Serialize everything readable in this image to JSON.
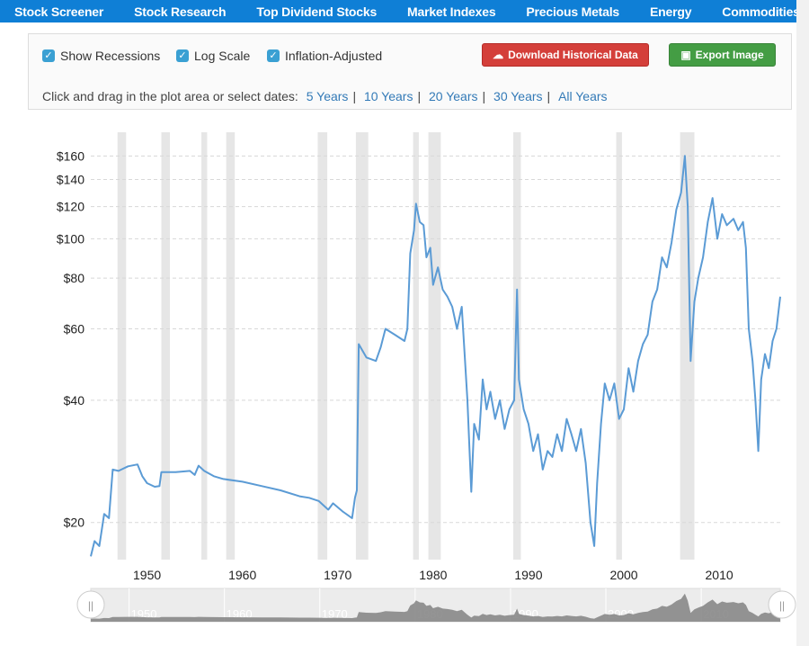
{
  "nav": [
    "Stock Screener",
    "Stock Research",
    "Top Dividend Stocks",
    "Market Indexes",
    "Precious Metals",
    "Energy",
    "Commodities"
  ],
  "controls": {
    "checkboxes": [
      "Show Recessions",
      "Log Scale",
      "Inflation-Adjusted"
    ],
    "download": "Download Historical Data",
    "export": "Export Image",
    "dates_label": "Click and drag in the plot area or select dates:",
    "ranges": [
      "5 Years",
      "10 Years",
      "20 Years",
      "30 Years",
      "All Years"
    ]
  },
  "colors": {
    "line": "#5b9bd5",
    "recession": "#e6e6e6",
    "navigator": "#888888"
  },
  "chart_data": {
    "type": "line",
    "title": "",
    "xlabel": "",
    "ylabel": "",
    "yscale": "log",
    "ylim": [
      16.2,
      183
    ],
    "xlim": [
      1944.1,
      2016.4
    ],
    "ytick_labels": [
      "$20",
      "$40",
      "$60",
      "$80",
      "$100",
      "$120",
      "$140",
      "$160"
    ],
    "yticks": [
      20,
      40,
      60,
      80,
      100,
      120,
      140,
      160
    ],
    "xtick_labels": [
      "1950",
      "1960",
      "1970",
      "1980",
      "1990",
      "2000",
      "2010"
    ],
    "xticks": [
      1950,
      1960,
      1970,
      1980,
      1990,
      2000,
      2010
    ],
    "recessions": [
      [
        1946.9,
        1947.8
      ],
      [
        1951.5,
        1952.4
      ],
      [
        1955.7,
        1956.3
      ],
      [
        1958.3,
        1959.2
      ],
      [
        1967.9,
        1968.9
      ],
      [
        1971.9,
        1973.2
      ],
      [
        1977.9,
        1978.5
      ],
      [
        1979.5,
        1980.8
      ],
      [
        1988.4,
        1989.2
      ],
      [
        1999.2,
        1999.8
      ],
      [
        2005.9,
        2007.4
      ]
    ],
    "series": [
      {
        "name": "Price",
        "points": [
          [
            1944.1,
            16.5
          ],
          [
            1944.5,
            18
          ],
          [
            1945,
            17.5
          ],
          [
            1945.5,
            21
          ],
          [
            1946,
            20.5
          ],
          [
            1946.4,
            27
          ],
          [
            1947,
            26.8
          ],
          [
            1948,
            27.5
          ],
          [
            1949,
            27.8
          ],
          [
            1949.5,
            26
          ],
          [
            1950,
            25
          ],
          [
            1950.8,
            24.5
          ],
          [
            1951.3,
            24.6
          ],
          [
            1951.5,
            26.6
          ],
          [
            1953,
            26.6
          ],
          [
            1954.5,
            26.8
          ],
          [
            1955,
            26.2
          ],
          [
            1955.4,
            27.6
          ],
          [
            1956,
            26.8
          ],
          [
            1957,
            26
          ],
          [
            1958,
            25.6
          ],
          [
            1960,
            25.2
          ],
          [
            1962,
            24.6
          ],
          [
            1964,
            24
          ],
          [
            1966,
            23.2
          ],
          [
            1967,
            23
          ],
          [
            1968,
            22.6
          ],
          [
            1969,
            21.5
          ],
          [
            1969.5,
            22.3
          ],
          [
            1970.5,
            21.3
          ],
          [
            1971.5,
            20.5
          ],
          [
            1971.8,
            23
          ],
          [
            1972,
            24
          ],
          [
            1972.2,
            55
          ],
          [
            1973,
            51
          ],
          [
            1974,
            50
          ],
          [
            1974.5,
            54
          ],
          [
            1975,
            60
          ],
          [
            1976,
            58
          ],
          [
            1977,
            56
          ],
          [
            1977.3,
            60
          ],
          [
            1977.6,
            92
          ],
          [
            1978,
            105
          ],
          [
            1978.2,
            122
          ],
          [
            1978.6,
            110
          ],
          [
            1979,
            108
          ],
          [
            1979.3,
            90
          ],
          [
            1979.7,
            95
          ],
          [
            1980,
            77
          ],
          [
            1980.5,
            85
          ],
          [
            1981,
            75
          ],
          [
            1981.5,
            72
          ],
          [
            1982,
            68
          ],
          [
            1982.5,
            60
          ],
          [
            1983,
            68
          ],
          [
            1983.6,
            40
          ],
          [
            1984,
            23.8
          ],
          [
            1984.3,
            35
          ],
          [
            1984.8,
            32
          ],
          [
            1985.2,
            45
          ],
          [
            1985.6,
            38
          ],
          [
            1986,
            42
          ],
          [
            1986.5,
            36
          ],
          [
            1987,
            40
          ],
          [
            1987.5,
            34
          ],
          [
            1988,
            38
          ],
          [
            1988.5,
            40
          ],
          [
            1988.8,
            75
          ],
          [
            1989,
            45
          ],
          [
            1989.5,
            38
          ],
          [
            1990,
            35
          ],
          [
            1990.5,
            30
          ],
          [
            1991,
            33
          ],
          [
            1991.5,
            27
          ],
          [
            1992,
            30
          ],
          [
            1992.5,
            29
          ],
          [
            1993,
            33
          ],
          [
            1993.5,
            30
          ],
          [
            1994,
            36
          ],
          [
            1994.5,
            33
          ],
          [
            1995,
            30
          ],
          [
            1995.5,
            34
          ],
          [
            1996,
            28
          ],
          [
            1996.5,
            20
          ],
          [
            1996.9,
            17.5
          ],
          [
            1997.2,
            25
          ],
          [
            1997.6,
            35
          ],
          [
            1998,
            44
          ],
          [
            1998.5,
            40
          ],
          [
            1999,
            44
          ],
          [
            1999.5,
            36
          ],
          [
            2000,
            38
          ],
          [
            2000.5,
            48
          ],
          [
            2001,
            42
          ],
          [
            2001.5,
            50
          ],
          [
            2002,
            55
          ],
          [
            2002.5,
            58
          ],
          [
            2003,
            70
          ],
          [
            2003.5,
            75
          ],
          [
            2004,
            90
          ],
          [
            2004.5,
            85
          ],
          [
            2005,
            98
          ],
          [
            2005.5,
            118
          ],
          [
            2006,
            130
          ],
          [
            2006.4,
            160
          ],
          [
            2006.7,
            120
          ],
          [
            2007,
            50
          ],
          [
            2007.4,
            70
          ],
          [
            2007.8,
            80
          ],
          [
            2008.3,
            90
          ],
          [
            2008.8,
            110
          ],
          [
            2009.3,
            126
          ],
          [
            2009.8,
            100
          ],
          [
            2010.3,
            115
          ],
          [
            2010.8,
            108
          ],
          [
            2011.5,
            112
          ],
          [
            2012,
            105
          ],
          [
            2012.5,
            110
          ],
          [
            2012.8,
            95
          ],
          [
            2013.1,
            60
          ],
          [
            2013.5,
            50
          ],
          [
            2013.8,
            40
          ],
          [
            2014.1,
            30
          ],
          [
            2014.4,
            45
          ],
          [
            2014.8,
            52
          ],
          [
            2015.2,
            48
          ],
          [
            2015.6,
            56
          ],
          [
            2016,
            60
          ],
          [
            2016.4,
            72
          ]
        ]
      }
    ],
    "legend": "none",
    "grid": "horizontal-dashed"
  }
}
